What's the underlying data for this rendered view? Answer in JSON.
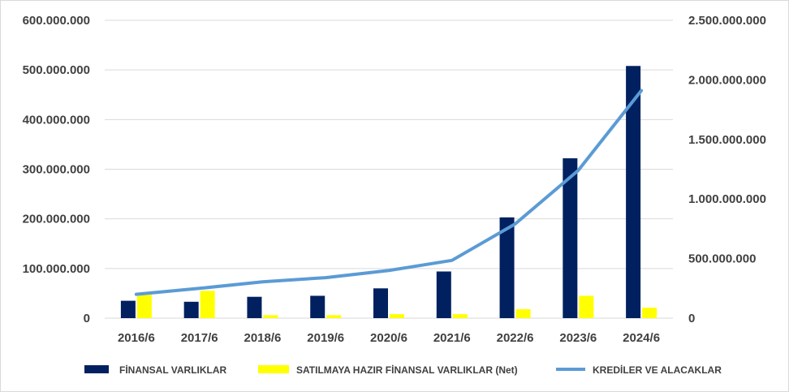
{
  "chart_data": {
    "type": "bar",
    "categories": [
      "2016/6",
      "2017/6",
      "2018/6",
      "2019/6",
      "2020/6",
      "2021/6",
      "2022/6",
      "2023/6",
      "2024/6"
    ],
    "series": [
      {
        "name": "FİNANSAL VARLIKLAR",
        "type": "bar",
        "axis": "left",
        "values": [
          35000000,
          33000000,
          43000000,
          45000000,
          60000000,
          94000000,
          203000000,
          322000000,
          508000000
        ]
      },
      {
        "name": "SATILMAYA HAZIR FİNANSAL VARLIKLAR (Net)",
        "type": "bar",
        "axis": "left",
        "values": [
          47000000,
          55000000,
          6000000,
          6000000,
          8000000,
          8000000,
          18000000,
          45000000,
          21000000
        ]
      },
      {
        "name": "KREDİLER VE ALACAKLAR",
        "type": "line",
        "axis": "right",
        "values": [
          200000000,
          250000000,
          305000000,
          340000000,
          400000000,
          485000000,
          790000000,
          1240000000,
          1910000000
        ]
      }
    ],
    "ylim_left": [
      0,
      600000000
    ],
    "ylim_right": [
      0,
      2500000000
    ],
    "yticks_left": [
      "0",
      "100.000.000",
      "200.000.000",
      "300.000.000",
      "400.000.000",
      "500.000.000",
      "600.000.000"
    ],
    "yticks_right": [
      "0",
      "500.000.000",
      "1.000.000.000",
      "1.500.000.000",
      "2.000.000.000",
      "2.500.000.000"
    ],
    "grid": true,
    "legend_position": "bottom",
    "colors": {
      "bar1": "#002060",
      "bar2": "#ffff00",
      "line": "#5b9bd5",
      "grid": "#d9d9d9",
      "text": "#404040"
    }
  }
}
